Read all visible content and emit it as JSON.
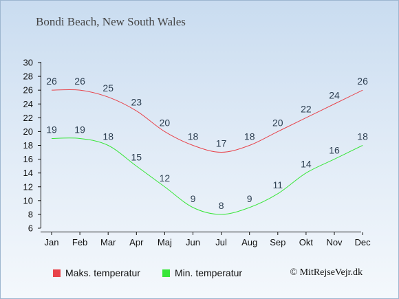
{
  "title": "Bondi Beach, New South Wales",
  "credit": "© MitRejseVejr.dk",
  "chart_data": {
    "type": "line",
    "categories": [
      "Jan",
      "Feb",
      "Mar",
      "Apr",
      "Maj",
      "Jun",
      "Jul",
      "Aug",
      "Sep",
      "Okt",
      "Nov",
      "Dec"
    ],
    "series": [
      {
        "name": "Maks. temperatur",
        "color": "#e8434a",
        "values": [
          26,
          26,
          25,
          23,
          20,
          18,
          17,
          18,
          20,
          22,
          24,
          26
        ]
      },
      {
        "name": "Min. temperatur",
        "color": "#39e639",
        "values": [
          19,
          19,
          18,
          15,
          12,
          9,
          8,
          9,
          11,
          14,
          16,
          18
        ]
      }
    ],
    "ylim": [
      6,
      30
    ],
    "yticks": [
      6,
      8,
      10,
      12,
      14,
      16,
      18,
      20,
      22,
      24,
      26,
      28,
      30
    ],
    "grid": false,
    "legend_position": "bottom-left",
    "xlabel": "",
    "ylabel": ""
  }
}
